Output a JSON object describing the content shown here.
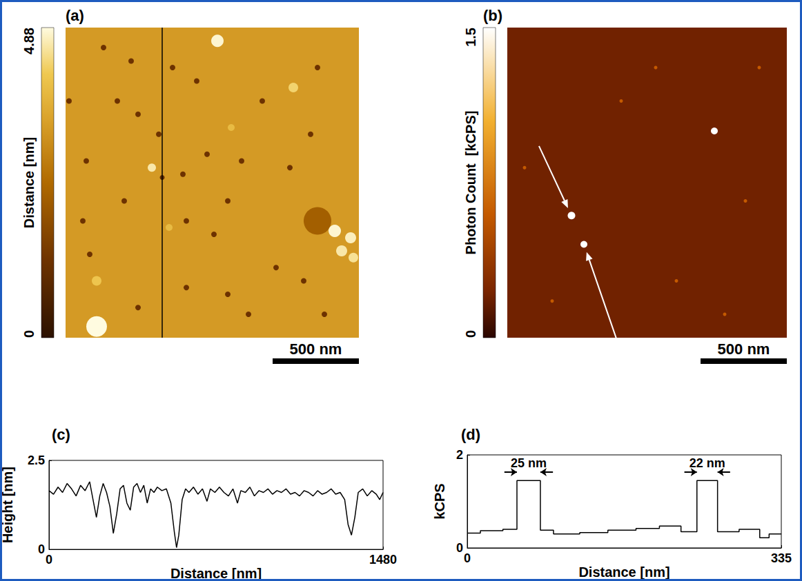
{
  "chart_data": [
    {
      "type": "image",
      "title": "(a)",
      "xlim": [
        0,
        1700
      ],
      "ylim": [
        0,
        1800
      ],
      "tick_labels": false,
      "background": 3.3,
      "features": {
        "x": [
          1460,
          220,
          380,
          620,
          300,
          20,
          760,
          420,
          540,
          120,
          680,
          820,
          1020,
          1300,
          1420,
          940,
          700,
          860,
          140,
          340,
          1220,
          1380,
          700,
          940,
          420,
          1060,
          1500,
          1140,
          1460,
          100,
          560,
          880,
          500,
          180,
          180,
          1320,
          960,
          1560,
          1652,
          1600,
          1668,
          600
        ],
        "y": [
          1122,
          116,
          194,
          232,
          426,
          426,
          310,
          503,
          619,
          774,
          851,
          735,
          774,
          813,
          619,
          1006,
          1122,
          1200,
          1316,
          1006,
          1393,
          1470,
          1509,
          1548,
          1625,
          1664,
          1664,
          426,
          232,
          1122,
          870,
          77,
          813,
          1470,
          1735,
          348,
          580,
          1180,
          1220,
          1296,
          1335,
          1160
        ],
        "values": [
          2.2,
          1.2,
          1.2,
          1.2,
          1.2,
          1.2,
          1.2,
          1.2,
          1.2,
          1.2,
          1.2,
          1.2,
          1.2,
          1.2,
          1.2,
          1.2,
          1.2,
          1.2,
          1.2,
          1.2,
          1.2,
          1.2,
          1.2,
          1.2,
          1.2,
          1.2,
          1.2,
          1.2,
          1.2,
          1.2,
          1.0,
          4.8,
          4.6,
          4.1,
          4.88,
          4.3,
          3.9,
          4.8,
          4.7,
          4.6,
          4.5,
          3.9
        ],
        "size": [
          160,
          32,
          32,
          32,
          32,
          32,
          32,
          32,
          32,
          32,
          32,
          32,
          32,
          32,
          32,
          32,
          32,
          32,
          32,
          32,
          32,
          32,
          32,
          32,
          32,
          32,
          32,
          32,
          32,
          32,
          28,
          72,
          48,
          56,
          120,
          56,
          40,
          72,
          64,
          64,
          56,
          40
        ]
      },
      "colorbar": {
        "label": "Distance [nm]",
        "range": [
          0,
          4.88
        ],
        "ticks": [
          0,
          4.88
        ]
      },
      "scale_bar": {
        "label": "500 nm",
        "length": 500
      },
      "profile_line_x": 560
    },
    {
      "type": "image",
      "title": "(b)",
      "xlim": [
        0,
        1620
      ],
      "ylim": [
        0,
        1800
      ],
      "tick_labels": false,
      "background": 0.2,
      "features": {
        "x": [
          660,
          1380,
          260,
          980,
          1460,
          100,
          860,
          1260,
          1200,
          372,
          444
        ],
        "y": [
          426,
          1006,
          1587,
          1470,
          232,
          813,
          232,
          1664,
          600,
          1091,
          1258
        ],
        "values": [
          0.6,
          0.6,
          0.6,
          0.6,
          0.6,
          0.6,
          0.6,
          0.6,
          1.5,
          1.5,
          1.5
        ],
        "size": [
          20,
          20,
          20,
          20,
          20,
          20,
          20,
          20,
          40,
          44,
          40
        ]
      },
      "colorbar": {
        "label": "Photon Count  [kCPS]",
        "range": [
          0,
          1.5
        ],
        "ticks": [
          0,
          1.5
        ]
      },
      "scale_bar": {
        "label": "500 nm",
        "length": 500
      },
      "arrows": [
        9,
        10
      ]
    },
    {
      "type": "line",
      "title": "(c)",
      "x_label": "Distance [nm]",
      "y_label": "Height [nm]",
      "xlim": [
        0,
        1480
      ],
      "ylim": [
        0,
        2.5
      ],
      "xticks": [
        0,
        1480
      ],
      "yticks": [
        0,
        2.5
      ],
      "grid": false,
      "color": "#000000",
      "x": [
        0,
        20,
        40,
        60,
        80,
        100,
        120,
        140,
        160,
        180,
        195,
        210,
        225,
        240,
        255,
        270,
        285,
        300,
        315,
        330,
        345,
        360,
        375,
        390,
        405,
        420,
        435,
        450,
        465,
        480,
        500,
        520,
        540,
        555,
        565,
        575,
        590,
        605,
        620,
        640,
        660,
        680,
        700,
        715,
        735,
        755,
        775,
        795,
        815,
        835,
        850,
        870,
        890,
        910,
        930,
        950,
        970,
        990,
        1010,
        1030,
        1050,
        1070,
        1090,
        1110,
        1130,
        1150,
        1170,
        1190,
        1210,
        1230,
        1250,
        1270,
        1290,
        1310,
        1325,
        1340,
        1355,
        1370,
        1390,
        1410,
        1430,
        1450,
        1465,
        1480
      ],
      "values": [
        1.65,
        1.55,
        1.75,
        1.6,
        1.85,
        1.7,
        1.5,
        1.8,
        1.65,
        1.9,
        1.4,
        0.9,
        1.5,
        1.85,
        1.6,
        1.2,
        0.45,
        1.0,
        1.7,
        1.8,
        1.3,
        1.1,
        1.75,
        1.85,
        1.6,
        1.8,
        1.3,
        1.7,
        1.6,
        1.75,
        1.65,
        1.7,
        1.3,
        0.5,
        0.05,
        0.4,
        1.4,
        1.7,
        1.6,
        1.75,
        1.55,
        1.7,
        1.35,
        1.7,
        1.6,
        1.75,
        1.6,
        1.5,
        1.7,
        1.3,
        1.65,
        1.6,
        1.75,
        1.5,
        1.65,
        1.6,
        1.7,
        1.55,
        1.65,
        1.6,
        1.7,
        1.55,
        1.6,
        1.5,
        1.65,
        1.6,
        1.5,
        1.65,
        1.55,
        1.6,
        1.7,
        1.55,
        1.6,
        1.4,
        0.7,
        0.4,
        0.9,
        1.6,
        1.7,
        1.5,
        1.65,
        1.55,
        1.4,
        1.6
      ]
    },
    {
      "type": "line",
      "title": "(d)",
      "x_label": "Distance [nm]",
      "y_label": "kCPS",
      "xlim": [
        0,
        335
      ],
      "ylim": [
        0,
        2
      ],
      "xticks": [
        0,
        335
      ],
      "yticks": [
        0,
        2
      ],
      "grid": false,
      "color": "#000000",
      "x": [
        0,
        14,
        14,
        38,
        38,
        53,
        53,
        78,
        78,
        92,
        92,
        120,
        120,
        150,
        150,
        180,
        180,
        205,
        205,
        228,
        228,
        245,
        245,
        267,
        267,
        290,
        290,
        312,
        312,
        322,
        322,
        335
      ],
      "values": [
        0.32,
        0.32,
        0.37,
        0.37,
        0.4,
        0.4,
        1.45,
        1.45,
        0.38,
        0.38,
        0.3,
        0.3,
        0.33,
        0.33,
        0.38,
        0.38,
        0.42,
        0.42,
        0.47,
        0.47,
        0.35,
        0.35,
        1.45,
        1.45,
        0.35,
        0.35,
        0.4,
        0.4,
        0.22,
        0.22,
        0.3,
        0.3
      ],
      "annotations": [
        {
          "text": "25 nm",
          "x1": 53,
          "x2": 78,
          "y": 1.63
        },
        {
          "text": "22 nm",
          "x1": 245,
          "x2": 267,
          "y": 1.63
        }
      ]
    }
  ]
}
